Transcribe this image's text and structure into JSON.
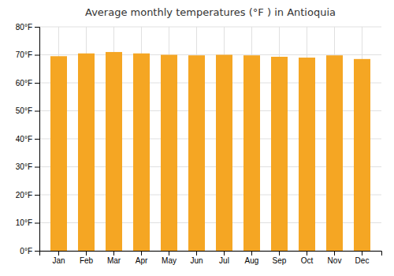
{
  "chart_data": {
    "type": "bar",
    "title": "Average monthly temperatures (°F ) in Antioquia",
    "categories": [
      "Jan",
      "Feb",
      "Mar",
      "Apr",
      "May",
      "Jun",
      "Jul",
      "Aug",
      "Sep",
      "Oct",
      "Nov",
      "Dec"
    ],
    "values": [
      69.5,
      70.5,
      71.0,
      70.5,
      70.0,
      69.8,
      70.0,
      69.8,
      69.3,
      69.0,
      69.8,
      68.5
    ],
    "color": "#F5A623",
    "ylim": [
      0,
      80
    ],
    "yticks": [
      {
        "value": 0,
        "label": "0°F"
      },
      {
        "value": 10,
        "label": "10°F"
      },
      {
        "value": 20,
        "label": "20°F"
      },
      {
        "value": 30,
        "label": "30°F"
      },
      {
        "value": 40,
        "label": "40°F"
      },
      {
        "value": 50,
        "label": "50°F"
      },
      {
        "value": 60,
        "label": "60°F"
      },
      {
        "value": 70,
        "label": "70°F"
      },
      {
        "value": 80,
        "label": "80°F"
      }
    ],
    "grid": true
  }
}
